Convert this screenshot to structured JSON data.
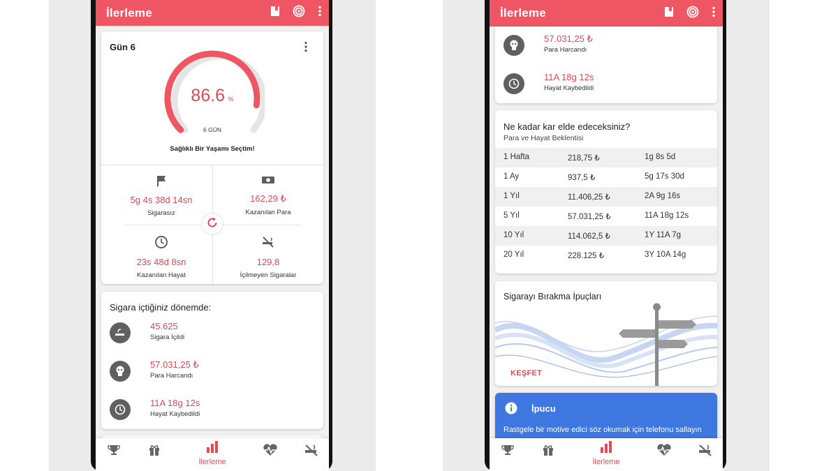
{
  "colors": {
    "accent": "#ef5663",
    "value_red": "#dd4a56",
    "tip_blue": "#3f77e0"
  },
  "appbar": {
    "title": "İlerleme"
  },
  "progress_card": {
    "day_title": "Gün 6",
    "percent": "86.6",
    "percent_sign": "%",
    "percent_fraction": 0.866,
    "days_label": "6 GÜN",
    "tagline": "Sağlıklı Bir Yaşamı Seçtim!",
    "stats": [
      {
        "value": "5g 4s 38d 14sn",
        "label": "Sigarasız",
        "icon": "flag-icon"
      },
      {
        "value": "162,29 ₺",
        "label": "Kazanılan Para",
        "icon": "money-icon"
      },
      {
        "value": "23s 48d 8sn",
        "label": "Kazanılan Hayat",
        "icon": "clock-icon"
      },
      {
        "value": "129,8",
        "label": "İçilmeyen Sigaralar",
        "icon": "no-smoking-icon"
      }
    ]
  },
  "smoking_card": {
    "title": "Sigara içtiğiniz dönemde:",
    "items": [
      {
        "value": "45.625",
        "label": "Sigara İçildi",
        "icon": "cigarette-icon"
      },
      {
        "value": "57.031,25 ₺",
        "label": "Para Harcandı",
        "icon": "skull-money-icon"
      },
      {
        "value": "11A 18g 12s",
        "label": "Hayat Kaybedildi",
        "icon": "history-clock-icon"
      }
    ]
  },
  "profit_card": {
    "title": "Ne kadar kar elde edeceksiniz?",
    "subtitle": "Para ve Hayat Beklentisi",
    "rows": [
      {
        "period": "1 Hafta",
        "money": "218,75 ₺",
        "life": "1g 8s 5d"
      },
      {
        "period": "1 Ay",
        "money": "937,5 ₺",
        "life": "5g 17s 30d"
      },
      {
        "period": "1 Yıl",
        "money": "11.406,25 ₺",
        "life": "2A 9g 16s"
      },
      {
        "period": "5 Yıl",
        "money": "57.031,25 ₺",
        "life": "11A 18g 12s"
      },
      {
        "period": "10 Yıl",
        "money": "114.062,5 ₺",
        "life": "1Y 11A 7g"
      },
      {
        "period": "20 Yıl",
        "money": "228.125 ₺",
        "life": "3Y 10A 14g"
      }
    ]
  },
  "tips_card": {
    "title": "Sigarayı Bırakma İpuçları",
    "action": "KEŞFET"
  },
  "hint_card": {
    "title": "İpucu",
    "text": "Rastgele bir motive edici söz okumak için telefonu sallayın"
  },
  "bottom_nav": {
    "active_label": "İlerleme"
  }
}
